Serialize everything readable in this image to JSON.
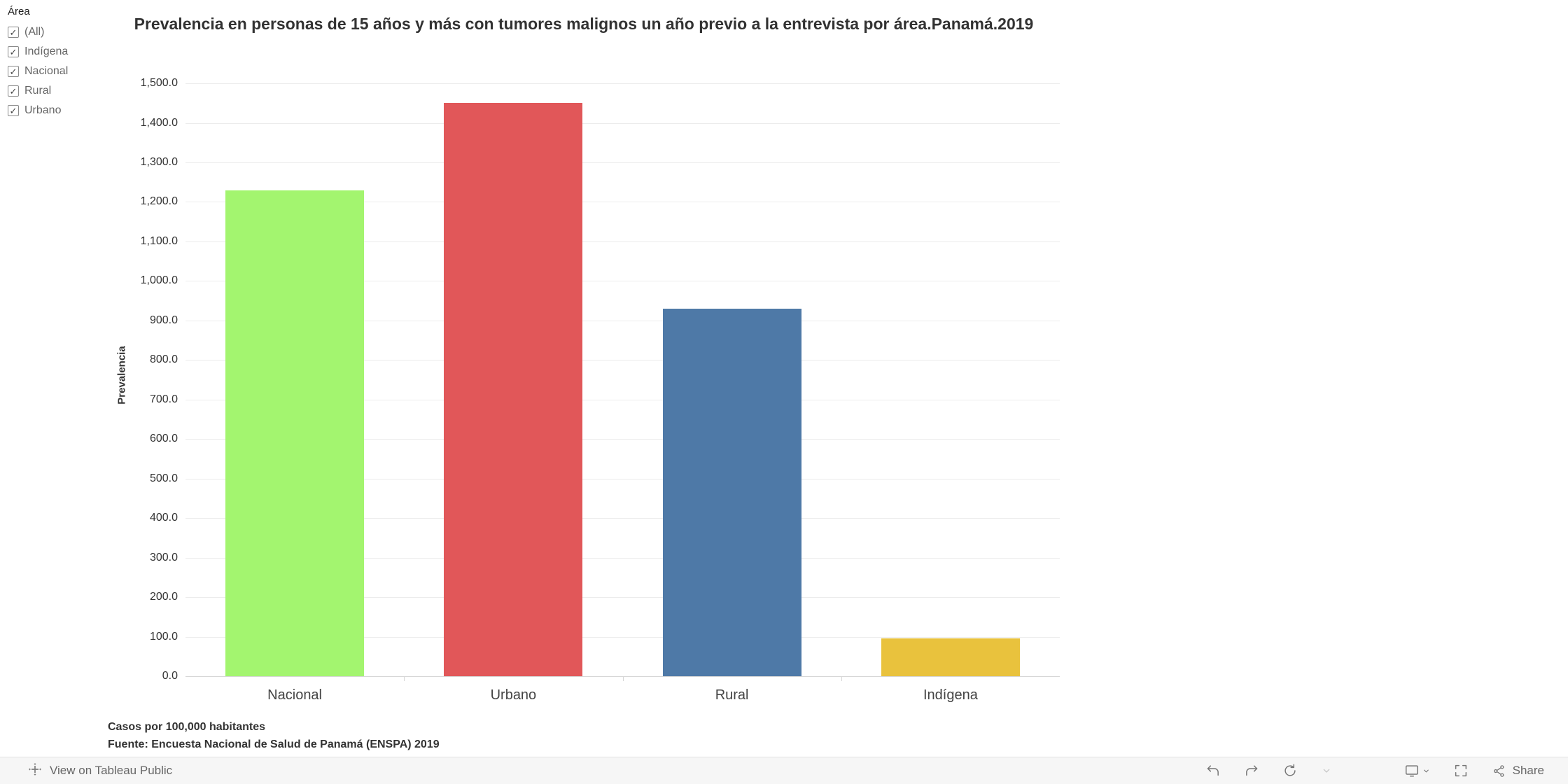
{
  "filter_panel": {
    "title": "Área",
    "items": [
      {
        "label": "(All)",
        "checked": true
      },
      {
        "label": "Indígena",
        "checked": true
      },
      {
        "label": "Nacional",
        "checked": true
      },
      {
        "label": "Rural",
        "checked": true
      },
      {
        "label": "Urbano",
        "checked": true
      }
    ]
  },
  "chart_data": {
    "type": "bar",
    "title": "Prevalencia en personas de 15 años y más con tumores malignos un año previo a la entrevista por área.Panamá.2019",
    "categories": [
      "Nacional",
      "Urbano",
      "Rural",
      "Indígena"
    ],
    "values": [
      1230,
      1450,
      930,
      95
    ],
    "bar_colors": [
      "#a3f56f",
      "#e15759",
      "#4e79a7",
      "#e9c23d"
    ],
    "ylabel": "Prevalencia",
    "xlabel": "",
    "ylim": [
      0,
      1500
    ],
    "ytick_step": 100,
    "yticks": [
      "0.0",
      "100.0",
      "200.0",
      "300.0",
      "400.0",
      "500.0",
      "600.0",
      "700.0",
      "800.0",
      "900.0",
      "1,000.0",
      "1,100.0",
      "1,200.0",
      "1,300.0",
      "1,400.0",
      "1,500.0"
    ],
    "grid": true,
    "legend": "none"
  },
  "footnotes": [
    "Casos por 100,000 habitantes",
    "Fuente: Encuesta Nacional de Salud de Panamá (ENSPA) 2019"
  ],
  "toolbar": {
    "view_label": "View on Tableau Public",
    "share_label": "Share"
  },
  "icons": {
    "check": "✓"
  }
}
